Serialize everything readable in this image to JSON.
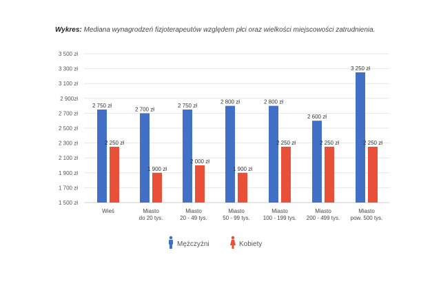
{
  "caption": {
    "prefix": "Wykres:",
    "text": "Mediana wynagrodzeń fizjoterapeutów względem płci oraz wielkości miejscowości zatrudnienia."
  },
  "chart_data": {
    "type": "bar",
    "title": "Mediana wynagrodzeń fizjoterapeutów względem płci oraz wielkości miejscowości zatrudnienia.",
    "categories": [
      [
        "Wieś"
      ],
      [
        "Miasto",
        "do 20 tys."
      ],
      [
        "Miasto",
        "20 - 49 tys."
      ],
      [
        "Miasto",
        "50 - 99 tys."
      ],
      [
        "Miasto",
        "100 - 199 tys."
      ],
      [
        "Miasto",
        "200 - 499 tys."
      ],
      [
        "Miasto",
        "pow. 500 tys."
      ]
    ],
    "series": [
      {
        "name": "Mężczyźni",
        "color": "#4270c6",
        "icon": "male-person-icon",
        "values": [
          2750,
          2700,
          2750,
          2800,
          2800,
          2600,
          3250
        ],
        "labels": [
          "2 750 zł",
          "2 700 zł",
          "2 750 zł",
          "2 800 zł",
          "2 800 zł",
          "2 600 zł",
          "3 250 zł"
        ]
      },
      {
        "name": "Kobiety",
        "color": "#e9503a",
        "icon": "female-person-icon",
        "values": [
          2250,
          1900,
          2000,
          1900,
          2250,
          2250,
          2250
        ],
        "labels": [
          "2 250 zł",
          "1 900 zł",
          "2 000 zł",
          "1 900 zł",
          "2 250 zł",
          "2 250 zł",
          "2 250 zł"
        ]
      }
    ],
    "ylim": [
      1500,
      3500
    ],
    "yticks": [
      1500,
      1700,
      1900,
      2100,
      2300,
      2500,
      2700,
      2900,
      3100,
      3300,
      3500
    ],
    "ytick_labels": [
      "1 500 zł",
      "1 700 zł",
      "1 900 zł",
      "2 100 zł",
      "2 300 zł",
      "2 500 zł",
      "2 700 zł",
      "2 900zł",
      "3 100 zł",
      "3 300 zł",
      "3 500 zł"
    ],
    "grid": true,
    "legend": "bottom-center"
  }
}
